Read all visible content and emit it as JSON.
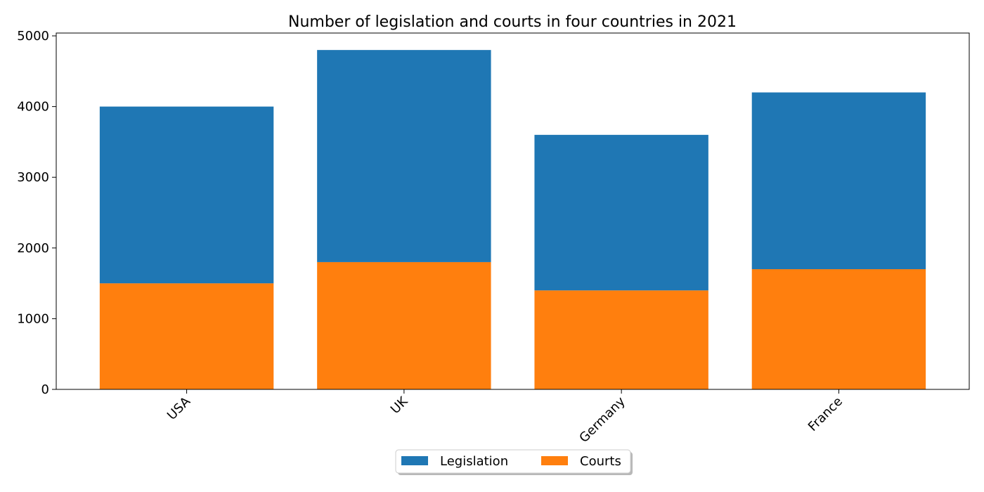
{
  "chart_data": {
    "type": "bar",
    "stacked": true,
    "title": "Number of legislation and courts in four countries in 2021",
    "xlabel": "",
    "ylabel": "",
    "categories": [
      "USA",
      "UK",
      "Germany",
      "France"
    ],
    "series": [
      {
        "name": "Courts",
        "values": [
          1500,
          1800,
          1400,
          1700
        ],
        "color": "#ff7f0e"
      },
      {
        "name": "Legislation",
        "values": [
          2500,
          3000,
          2200,
          2500
        ],
        "color": "#1f77b4"
      }
    ],
    "totals": [
      4000,
      4800,
      3600,
      4200
    ],
    "ylim": [
      0,
      5040
    ],
    "yticks": [
      0,
      1000,
      2000,
      3000,
      4000,
      5000
    ],
    "grid": false,
    "legend": {
      "placement": "bottom-center",
      "entries": [
        {
          "label": "Legislation",
          "color": "#1f77b4"
        },
        {
          "label": "Courts",
          "color": "#ff7f0e"
        }
      ]
    }
  }
}
